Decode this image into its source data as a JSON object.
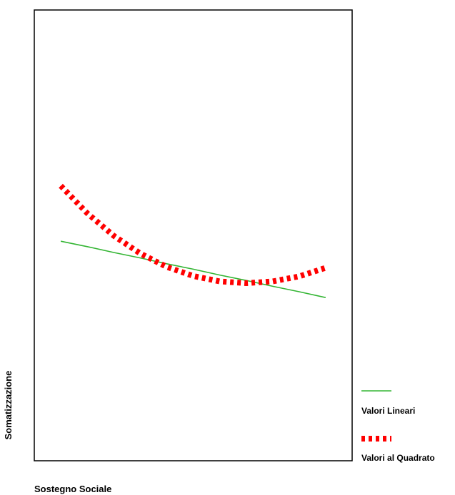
{
  "chart_data": {
    "type": "line",
    "title": "",
    "xlabel": "Sostegno Sociale",
    "ylabel": "Somatizzazione",
    "x": [
      1,
      2,
      3,
      4,
      5,
      6,
      7,
      8,
      9,
      10,
      11
    ],
    "xlim": [
      0,
      12
    ],
    "ylim": [
      0,
      10
    ],
    "grid": false,
    "legend": "right",
    "series": [
      {
        "name": "Valori Lineari",
        "color": "#33b533",
        "style": "solid",
        "values": [
          4.87,
          4.75,
          4.62,
          4.5,
          4.37,
          4.25,
          4.12,
          4.0,
          3.87,
          3.75,
          3.62
        ]
      },
      {
        "name": "Valori al Quadrato",
        "color": "#ff0000",
        "style": "dashed",
        "values": [
          6.1,
          5.49,
          4.99,
          4.6,
          4.3,
          4.1,
          3.98,
          3.94,
          3.98,
          4.09,
          4.28
        ]
      }
    ]
  }
}
